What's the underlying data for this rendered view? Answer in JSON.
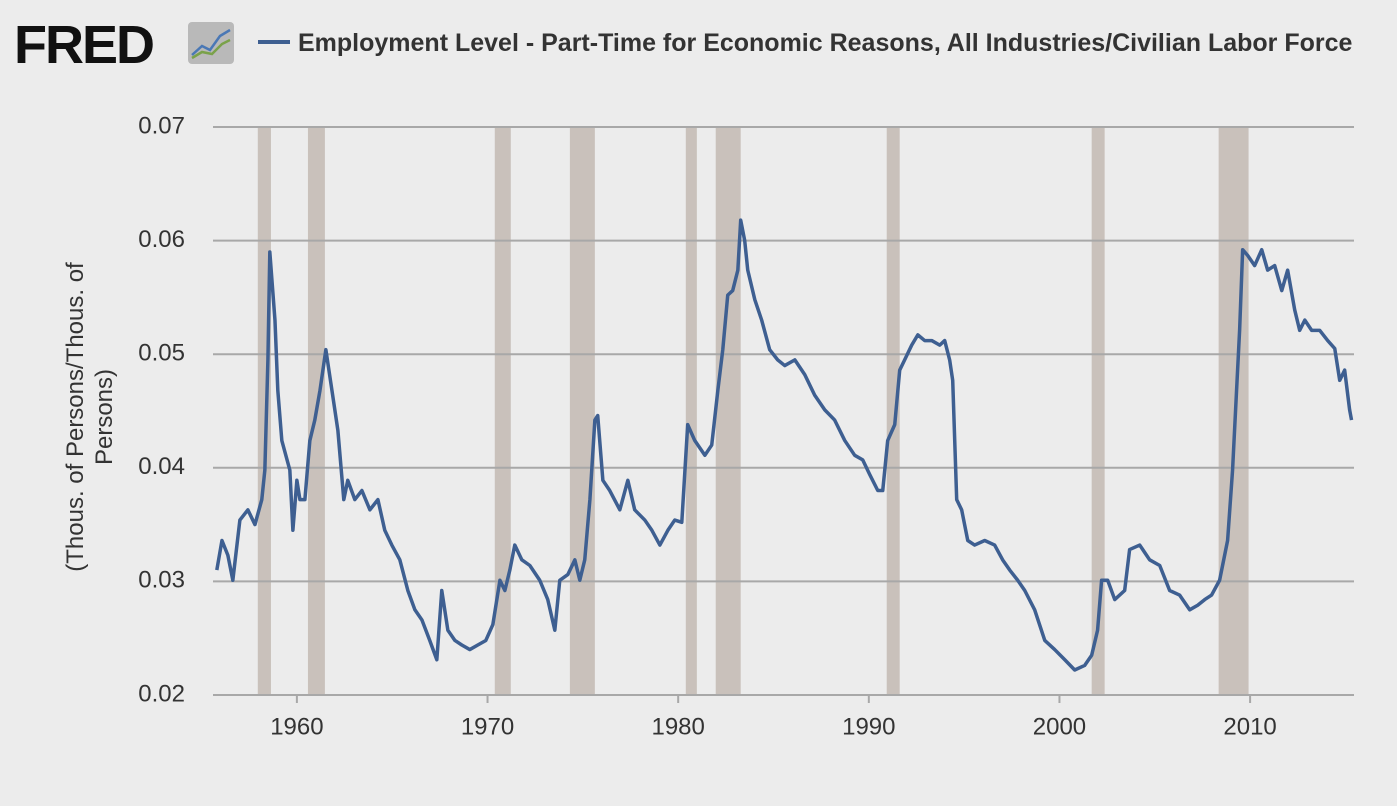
{
  "chart_data": {
    "type": "line",
    "logo": "FRED",
    "ylabel": "(Thous. of Persons/Thous. of Persons)",
    "xlim": [
      1955.6,
      2015.45
    ],
    "ylim": [
      0.02,
      0.07
    ],
    "xticks": [
      1960,
      1970,
      1980,
      1990,
      2000,
      2010
    ],
    "yticks": [
      0.02,
      0.03,
      0.04,
      0.05,
      0.06,
      0.07
    ],
    "grid": true,
    "recession_color": "#c9c1bb",
    "recessions": [
      [
        1957.95,
        1958.64
      ],
      [
        1960.58,
        1961.47
      ],
      [
        1970.38,
        1971.22
      ],
      [
        1974.32,
        1975.63
      ],
      [
        1980.4,
        1980.98
      ],
      [
        1981.97,
        1983.28
      ],
      [
        1990.94,
        1991.62
      ],
      [
        2001.69,
        2002.37
      ],
      [
        2008.35,
        2009.92
      ]
    ],
    "x": [
      1955.8,
      1956.07,
      1956.38,
      1956.64,
      1957.01,
      1957.43,
      1957.8,
      1958.16,
      1958.32,
      1958.48,
      1958.58,
      1958.85,
      1959.0,
      1959.21,
      1959.63,
      1959.79,
      1960.0,
      1960.16,
      1960.42,
      1960.68,
      1960.94,
      1961.21,
      1961.52,
      1961.84,
      1962.15,
      1962.46,
      1962.67,
      1963.04,
      1963.41,
      1963.83,
      1964.25,
      1964.61,
      1964.98,
      1965.4,
      1965.82,
      1966.19,
      1966.56,
      1966.97,
      1967.34,
      1967.6,
      1967.92,
      1968.29,
      1968.65,
      1969.07,
      1969.49,
      1969.91,
      1970.28,
      1970.65,
      1970.91,
      1971.17,
      1971.43,
      1971.8,
      1972.22,
      1972.74,
      1973.16,
      1973.53,
      1973.79,
      1974.21,
      1974.58,
      1974.84,
      1975.1,
      1975.37,
      1975.63,
      1975.78,
      1976.05,
      1976.41,
      1976.94,
      1977.36,
      1977.72,
      1978.25,
      1978.62,
      1979.04,
      1979.46,
      1979.82,
      1980.19,
      1980.5,
      1980.87,
      1981.4,
      1981.76,
      1982.08,
      1982.34,
      1982.6,
      1982.86,
      1983.13,
      1983.28,
      1983.49,
      1983.65,
      1984.02,
      1984.38,
      1984.8,
      1985.22,
      1985.59,
      1986.12,
      1986.64,
      1987.16,
      1987.69,
      1988.21,
      1988.74,
      1989.26,
      1989.68,
      1990.05,
      1990.47,
      1990.73,
      1990.99,
      1991.36,
      1991.62,
      1991.88,
      1992.25,
      1992.57,
      1992.93,
      1993.3,
      1993.72,
      1993.98,
      1994.24,
      1994.4,
      1994.61,
      1994.87,
      1995.19,
      1995.55,
      1996.08,
      1996.6,
      1997.02,
      1997.39,
      1997.81,
      1998.18,
      1998.7,
      1999.23,
      1999.75,
      2000.28,
      2000.8,
      2001.32,
      2001.69,
      2002.0,
      2002.21,
      2002.53,
      2002.9,
      2003.42,
      2003.68,
      2004.21,
      2004.73,
      2005.26,
      2005.78,
      2006.3,
      2006.83,
      2007.25,
      2007.62,
      2007.98,
      2008.4,
      2008.82,
      2009.08,
      2009.29,
      2009.45,
      2009.61,
      2009.87,
      2010.24,
      2010.61,
      2010.92,
      2011.29,
      2011.66,
      2011.97,
      2012.34,
      2012.6,
      2012.87,
      2013.23,
      2013.65,
      2014.07,
      2014.44,
      2014.7,
      2014.96,
      2015.22,
      2015.32
    ],
    "series": [
      {
        "name": "Employment Level - Part-Time for Economic Reasons, All Industries/Civilian Labor Force",
        "color": "#3e5f91",
        "values": [
          0.031,
          0.0336,
          0.0323,
          0.0301,
          0.0354,
          0.0363,
          0.035,
          0.0372,
          0.0398,
          0.0495,
          0.059,
          0.053,
          0.0468,
          0.0424,
          0.0398,
          0.0345,
          0.0389,
          0.0372,
          0.0372,
          0.0424,
          0.0442,
          0.0468,
          0.0504,
          0.0468,
          0.0433,
          0.0372,
          0.0389,
          0.0372,
          0.038,
          0.0363,
          0.0372,
          0.0345,
          0.0332,
          0.0319,
          0.0292,
          0.0275,
          0.0266,
          0.0248,
          0.0231,
          0.0292,
          0.0257,
          0.0248,
          0.0244,
          0.024,
          0.0244,
          0.0248,
          0.0262,
          0.0301,
          0.0292,
          0.031,
          0.0332,
          0.0319,
          0.0314,
          0.0301,
          0.0284,
          0.0257,
          0.0301,
          0.0306,
          0.0319,
          0.0301,
          0.0319,
          0.0372,
          0.0442,
          0.0446,
          0.0389,
          0.038,
          0.0363,
          0.0389,
          0.0363,
          0.0354,
          0.0345,
          0.0332,
          0.0345,
          0.0354,
          0.0352,
          0.0438,
          0.0424,
          0.0411,
          0.042,
          0.0468,
          0.0504,
          0.0552,
          0.0556,
          0.0574,
          0.0618,
          0.06,
          0.0574,
          0.0548,
          0.053,
          0.0504,
          0.0495,
          0.049,
          0.0495,
          0.0482,
          0.0464,
          0.0451,
          0.0442,
          0.0424,
          0.0411,
          0.0407,
          0.0394,
          0.038,
          0.038,
          0.0424,
          0.0438,
          0.0486,
          0.0495,
          0.0508,
          0.0517,
          0.0512,
          0.0512,
          0.0508,
          0.0512,
          0.0495,
          0.0477,
          0.0372,
          0.0363,
          0.0336,
          0.0332,
          0.0336,
          0.0332,
          0.0319,
          0.031,
          0.0301,
          0.0292,
          0.0275,
          0.0248,
          0.024,
          0.0231,
          0.0222,
          0.0226,
          0.0235,
          0.0257,
          0.0301,
          0.0301,
          0.0284,
          0.0292,
          0.0328,
          0.0332,
          0.0319,
          0.0314,
          0.0292,
          0.0288,
          0.0275,
          0.0279,
          0.0284,
          0.0288,
          0.0301,
          0.0336,
          0.0398,
          0.0468,
          0.0521,
          0.0592,
          0.0587,
          0.0578,
          0.0592,
          0.0574,
          0.0578,
          0.0556,
          0.0574,
          0.0539,
          0.0521,
          0.053,
          0.0521,
          0.0521,
          0.0512,
          0.0505,
          0.0477,
          0.0486,
          0.0451,
          0.0442
        ]
      }
    ]
  }
}
